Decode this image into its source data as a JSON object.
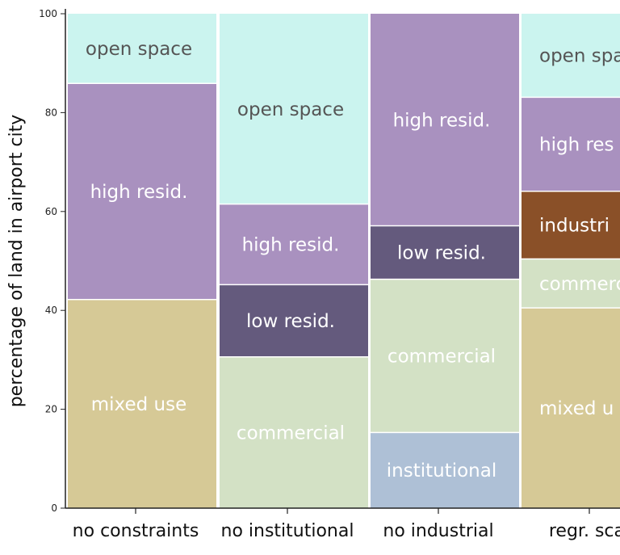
{
  "chart_data": {
    "type": "bar",
    "stacked": true,
    "ylabel": "percentage of land in airport city",
    "ylim": [
      0,
      100
    ],
    "yticks": [
      "0",
      "20",
      "40",
      "60",
      "80",
      "100"
    ],
    "categories": [
      "no constraints",
      "no institutional",
      "no industrial",
      "regr. scal"
    ],
    "series": [
      {
        "name": "institutional",
        "color": "#aec0d6",
        "label_color": "#ffffff",
        "values": [
          0,
          0,
          15.3,
          0
        ]
      },
      {
        "name": "mixed use",
        "color": "#d6c996",
        "label_color": "#ffffff",
        "values": [
          42.2,
          0,
          0,
          40.5
        ]
      },
      {
        "name": "commercial",
        "color": "#d3e1c5",
        "label_color": "#ffffff",
        "values": [
          0,
          30.6,
          31,
          9.9
        ]
      },
      {
        "name": "industrial",
        "color": "#8a5028",
        "label_color": "#ffffff",
        "values": [
          0,
          0,
          0,
          13.7
        ]
      },
      {
        "name": "low resid.",
        "color": "#645a7d",
        "label_color": "#ffffff",
        "values": [
          0,
          14.6,
          10.8,
          0
        ]
      },
      {
        "name": "high resid.",
        "color": "#a991bf",
        "label_color": "#ffffff",
        "values": [
          43.7,
          16.3,
          42.9,
          19
        ]
      },
      {
        "name": "open space",
        "color": "#cbf4ef",
        "label_color": "#555555",
        "values": [
          14.1,
          38.5,
          0,
          16.9
        ]
      }
    ],
    "segment_labels": [
      {
        "category": 0,
        "series": 6,
        "text": "open space"
      },
      {
        "category": 0,
        "series": 5,
        "text": "high resid."
      },
      {
        "category": 0,
        "series": 1,
        "text": "mixed use"
      },
      {
        "category": 1,
        "series": 6,
        "text": "open space"
      },
      {
        "category": 1,
        "series": 5,
        "text": "high resid."
      },
      {
        "category": 1,
        "series": 4,
        "text": "low resid."
      },
      {
        "category": 1,
        "series": 2,
        "text": "commercial"
      },
      {
        "category": 2,
        "series": 5,
        "text": "high resid."
      },
      {
        "category": 2,
        "series": 4,
        "text": "low resid."
      },
      {
        "category": 2,
        "series": 2,
        "text": "commercial"
      },
      {
        "category": 2,
        "series": 0,
        "text": "institutional"
      },
      {
        "category": 3,
        "series": 6,
        "text": "open spa"
      },
      {
        "category": 3,
        "series": 5,
        "text": "high res"
      },
      {
        "category": 3,
        "series": 2,
        "text": "commerc"
      },
      {
        "category": 3,
        "series": 3,
        "text": "industri"
      },
      {
        "category": 3,
        "series": 1,
        "text": "mixed u"
      }
    ]
  }
}
